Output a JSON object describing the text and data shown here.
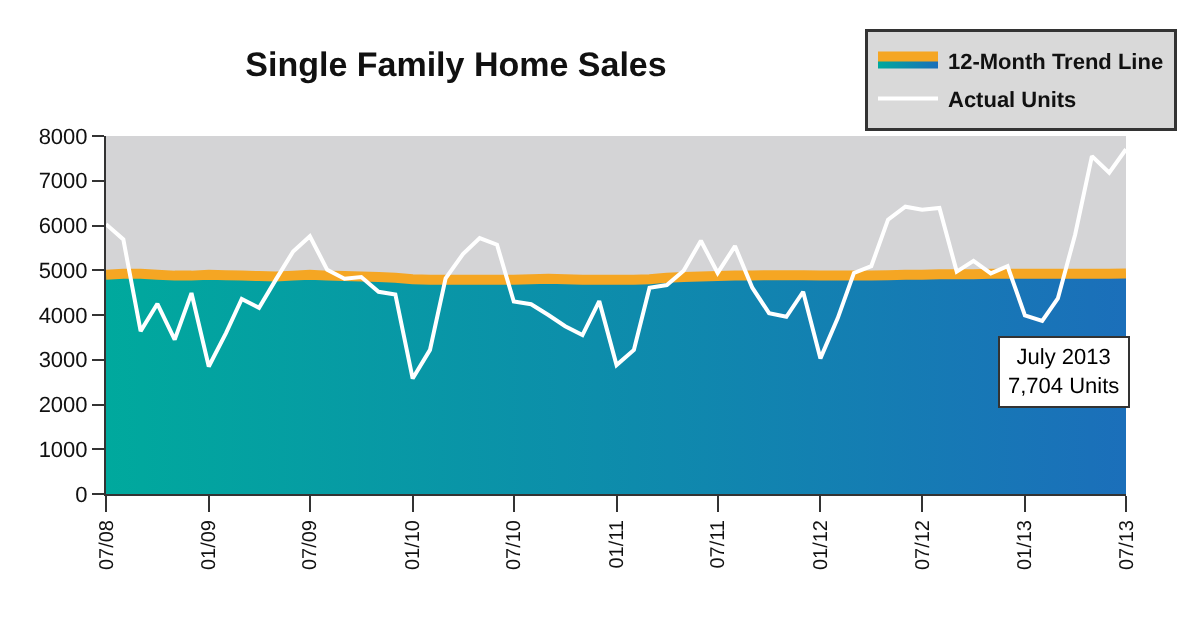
{
  "chart_data": {
    "type": "line",
    "title": "Single Family Home Sales",
    "x": [
      "2008-07",
      "2008-08",
      "2008-09",
      "2008-10",
      "2008-11",
      "2008-12",
      "2009-01",
      "2009-02",
      "2009-03",
      "2009-04",
      "2009-05",
      "2009-06",
      "2009-07",
      "2009-08",
      "2009-09",
      "2009-10",
      "2009-11",
      "2009-12",
      "2010-01",
      "2010-02",
      "2010-03",
      "2010-04",
      "2010-05",
      "2010-06",
      "2010-07",
      "2010-08",
      "2010-09",
      "2010-10",
      "2010-11",
      "2010-12",
      "2011-01",
      "2011-02",
      "2011-03",
      "2011-04",
      "2011-05",
      "2011-06",
      "2011-07",
      "2011-08",
      "2011-09",
      "2011-10",
      "2011-11",
      "2011-12",
      "2012-01",
      "2012-02",
      "2012-03",
      "2012-04",
      "2012-05",
      "2012-06",
      "2012-07",
      "2012-08",
      "2012-09",
      "2012-10",
      "2012-11",
      "2012-12",
      "2013-01",
      "2013-02",
      "2013-03",
      "2013-04",
      "2013-05",
      "2013-06",
      "2013-07"
    ],
    "series": [
      {
        "name": "12-Month Trend Line",
        "type": "area",
        "color": "#f5a623",
        "values": [
          4900,
          4920,
          4920,
          4900,
          4880,
          4880,
          4900,
          4890,
          4880,
          4870,
          4860,
          4880,
          4900,
          4880,
          4870,
          4860,
          4850,
          4830,
          4800,
          4790,
          4790,
          4790,
          4790,
          4790,
          4790,
          4800,
          4810,
          4800,
          4790,
          4790,
          4790,
          4790,
          4800,
          4830,
          4850,
          4860,
          4870,
          4880,
          4880,
          4890,
          4890,
          4890,
          4880,
          4880,
          4880,
          4880,
          4890,
          4900,
          4900,
          4910,
          4910,
          4910,
          4920,
          4920,
          4920,
          4920,
          4920,
          4920,
          4920,
          4920,
          4930
        ]
      },
      {
        "name": "Actual Units",
        "type": "line",
        "color": "#ffffff",
        "values": [
          6030,
          5690,
          3640,
          4250,
          3450,
          4490,
          2850,
          3600,
          4360,
          4160,
          4790,
          5420,
          5760,
          5010,
          4810,
          4850,
          4520,
          4460,
          2580,
          3220,
          4820,
          5360,
          5720,
          5570,
          4300,
          4240,
          4000,
          3750,
          3550,
          4310,
          2880,
          3220,
          4610,
          4670,
          4990,
          5660,
          4940,
          5540,
          4610,
          4040,
          3960,
          4520,
          3030,
          3930,
          4940,
          5090,
          6130,
          6420,
          6350,
          6390,
          4970,
          5210,
          4930,
          5090,
          3990,
          3870,
          4370,
          5800,
          7550,
          7180,
          7704
        ]
      }
    ],
    "xlim": [
      "2008-07",
      "2013-07"
    ],
    "xticks": [
      {
        "value": "2008-07",
        "label": "07/08"
      },
      {
        "value": "2009-01",
        "label": "01/09"
      },
      {
        "value": "2009-07",
        "label": "07/09"
      },
      {
        "value": "2010-01",
        "label": "01/10"
      },
      {
        "value": "2010-07",
        "label": "07/10"
      },
      {
        "value": "2011-01",
        "label": "01/11"
      },
      {
        "value": "2011-07",
        "label": "07/11"
      },
      {
        "value": "2012-01",
        "label": "01/12"
      },
      {
        "value": "2012-07",
        "label": "07/12"
      },
      {
        "value": "2013-01",
        "label": "01/13"
      },
      {
        "value": "2013-07",
        "label": "07/13"
      }
    ],
    "ylim": [
      0,
      8000
    ],
    "yticks": [
      0,
      1000,
      2000,
      3000,
      4000,
      5000,
      6000,
      7000,
      8000
    ],
    "annotations": [
      "July 2013",
      "7,704 Units"
    ],
    "legend": "top right",
    "grid": false
  }
}
